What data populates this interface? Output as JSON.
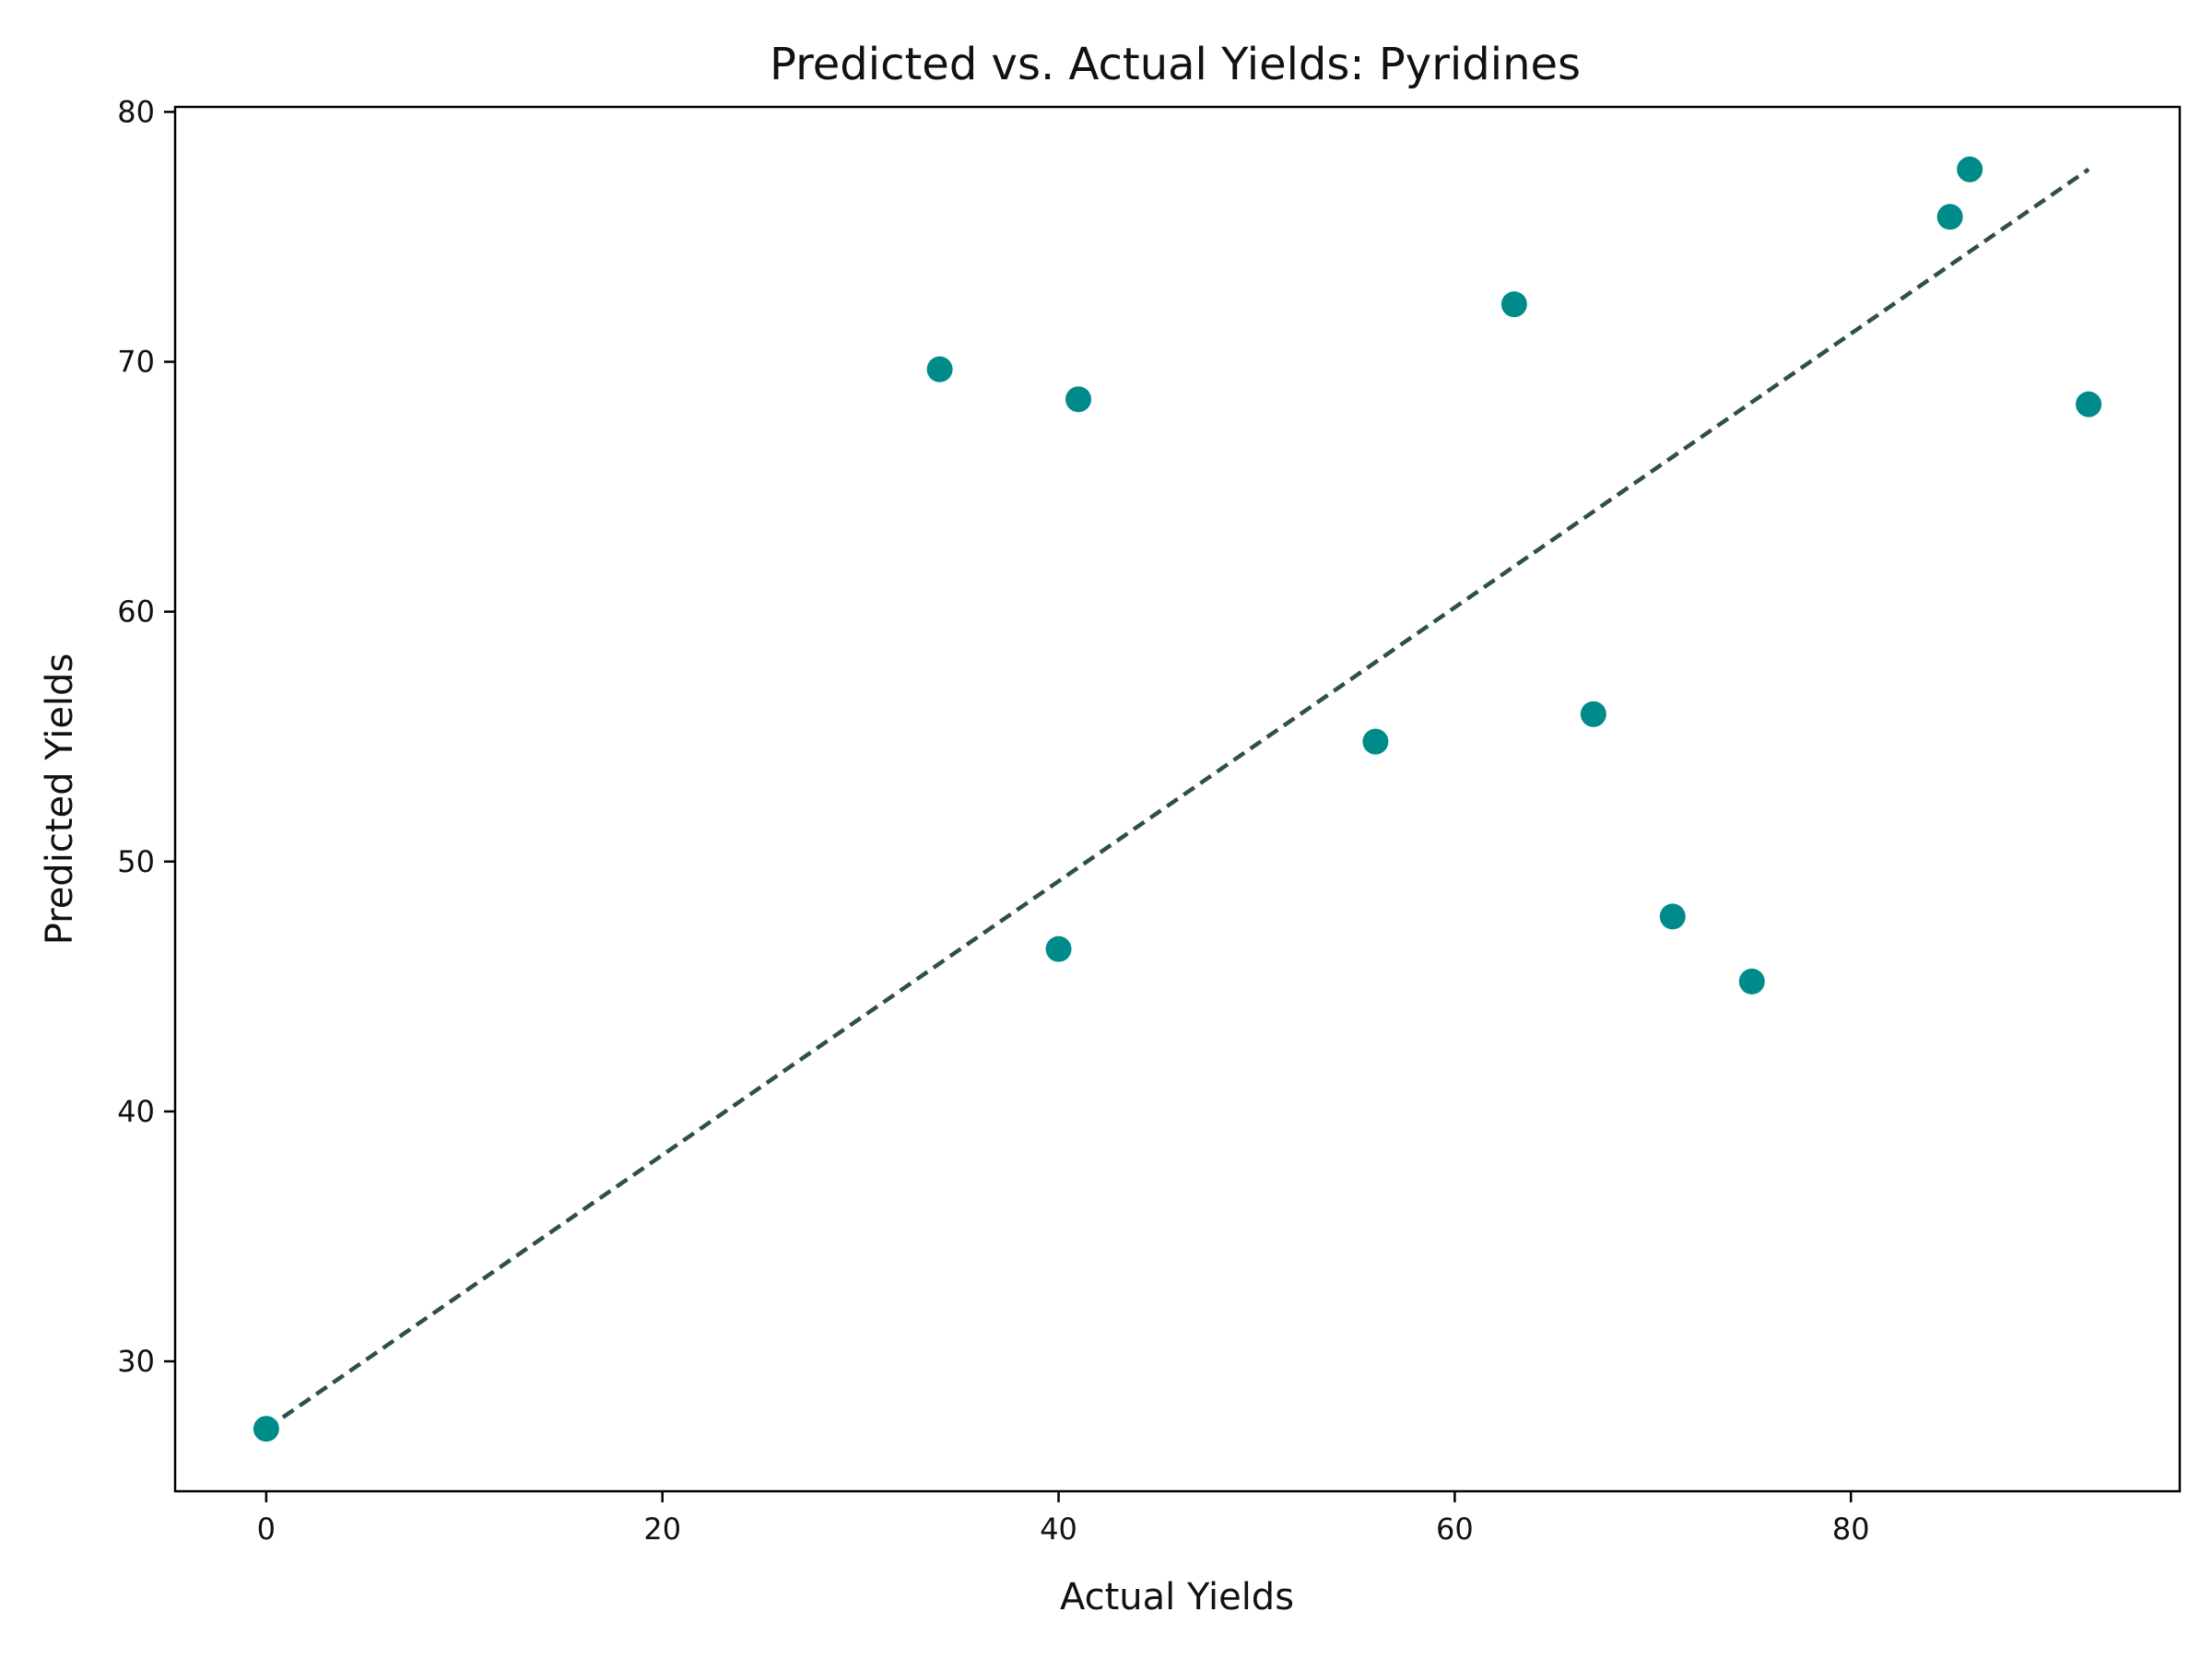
{
  "chart_data": {
    "type": "scatter",
    "title": "Predicted vs. Actual Yields: Pyridines",
    "xlabel": "Actual Yields",
    "ylabel": "Predicted Yields",
    "xlim": [
      -4.6,
      96.6
    ],
    "ylim": [
      24.8,
      80.2
    ],
    "x_ticks": [
      0,
      20,
      40,
      60,
      80
    ],
    "x_tick_labels": [
      "0",
      "20",
      "40",
      "60",
      "80"
    ],
    "y_ticks": [
      30,
      40,
      50,
      60,
      70,
      80
    ],
    "y_tick_labels": [
      "30",
      "40",
      "50",
      "60",
      "70",
      "80"
    ],
    "grid": false,
    "points": [
      {
        "x": 0,
        "y": 27.3
      },
      {
        "x": 34,
        "y": 69.7
      },
      {
        "x": 40,
        "y": 46.5
      },
      {
        "x": 41,
        "y": 68.5
      },
      {
        "x": 56,
        "y": 54.8
      },
      {
        "x": 63,
        "y": 72.3
      },
      {
        "x": 67,
        "y": 55.9
      },
      {
        "x": 71,
        "y": 47.8
      },
      {
        "x": 75,
        "y": 45.2
      },
      {
        "x": 85,
        "y": 75.8
      },
      {
        "x": 86,
        "y": 77.7
      },
      {
        "x": 92,
        "y": 68.3
      }
    ],
    "fit_line": {
      "x": [
        0,
        92
      ],
      "y": [
        27.3,
        77.7
      ],
      "style": "dashed"
    },
    "colors": {
      "points": "#008b8b",
      "fit_line": "#2f4f4f",
      "axes": "#000000"
    }
  }
}
